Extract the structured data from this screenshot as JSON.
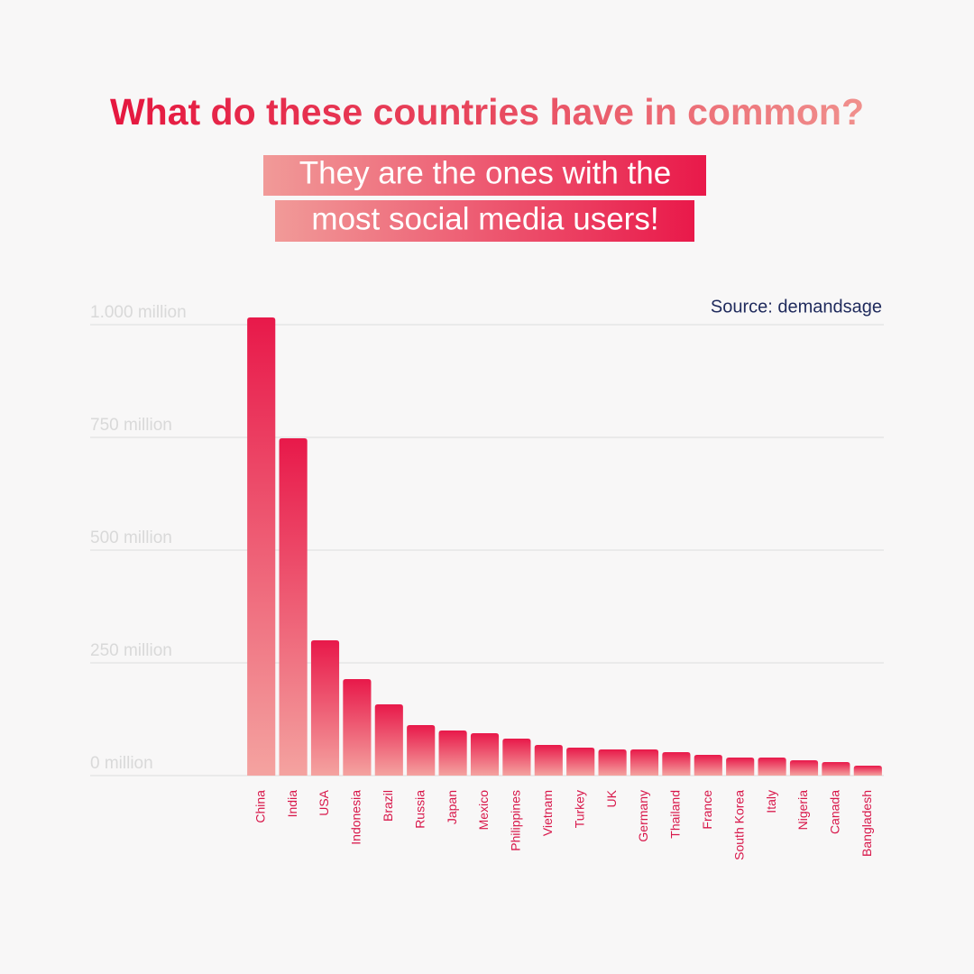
{
  "chart_data": {
    "type": "bar",
    "title": "What do these countries have in common?",
    "subtitle_lines": [
      "They are the ones with the",
      "most social media users!"
    ],
    "source": "Source: demandsage",
    "categories": [
      "China",
      "India",
      "USA",
      "Indonesia",
      "Brazil",
      "Russia",
      "Japan",
      "Mexico",
      "Philippines",
      "Vietnam",
      "Turkey",
      "UK",
      "Germany",
      "Thailand",
      "France",
      "South Korea",
      "Italy",
      "Nigeria",
      "Canada",
      "Bangladesh"
    ],
    "values": [
      1016,
      748,
      300,
      214,
      158,
      112,
      100,
      94,
      82,
      68,
      62,
      58,
      58,
      52,
      46,
      40,
      40,
      34,
      30,
      22
    ],
    "color": "#e8194a",
    "ylim": [
      0,
      1000
    ],
    "yticks": [
      {
        "value": 0,
        "label": "0 million"
      },
      {
        "value": 250,
        "label": "250 million"
      },
      {
        "value": 500,
        "label": "500 million"
      },
      {
        "value": 750,
        "label": "750 million"
      },
      {
        "value": 1000,
        "label": "1.000 million"
      }
    ],
    "grid": true
  }
}
